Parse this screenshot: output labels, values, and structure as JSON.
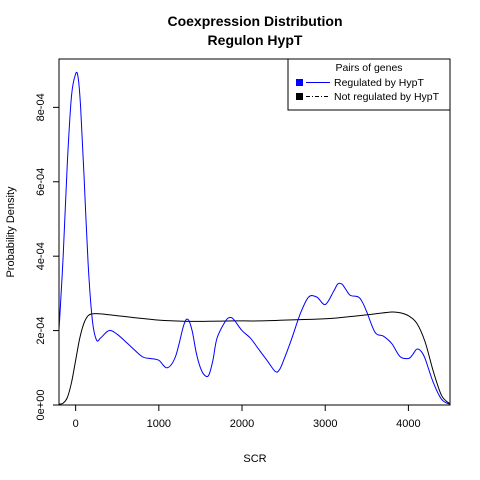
{
  "chart_data": {
    "type": "line",
    "title": "Coexpression Distribution",
    "subtitle": "Regulon HypT",
    "xlabel": "SCR",
    "ylabel": "Probability Density",
    "xlim": [
      -200,
      4500
    ],
    "ylim": [
      0,
      0.00093
    ],
    "x_ticks": [
      0,
      1000,
      2000,
      3000,
      4000
    ],
    "x_tick_labels": [
      "0",
      "1000",
      "2000",
      "3000",
      "4000"
    ],
    "y_ticks": [
      0,
      0.0002,
      0.0004,
      0.0006,
      0.0008
    ],
    "y_tick_labels": [
      "0e+00",
      "2e-04",
      "4e-04",
      "6e-04",
      "8e-04"
    ],
    "grid": false,
    "legend": {
      "title": "Pairs of genes",
      "placement": "top-right",
      "entries": [
        "Regulated by  HypT",
        "Not regulated by  HypT"
      ]
    },
    "colors": {
      "regulated": "#0000ff",
      "not_regulated": "#000000"
    },
    "series": [
      {
        "name": "Regulated by  HypT",
        "x": [
          -200,
          -150,
          -100,
          -50,
          0,
          30,
          60,
          100,
          150,
          200,
          250,
          300,
          400,
          500,
          650,
          800,
          900,
          1000,
          1100,
          1200,
          1300,
          1350,
          1400,
          1450,
          1500,
          1550,
          1600,
          1650,
          1700,
          1800,
          1850,
          1900,
          2000,
          2100,
          2200,
          2300,
          2400,
          2450,
          2500,
          2600,
          2700,
          2800,
          2900,
          3000,
          3100,
          3150,
          3200,
          3250,
          3300,
          3400,
          3450,
          3500,
          3600,
          3700,
          3800,
          3900,
          4000,
          4050,
          4100,
          4150,
          4200,
          4300,
          4400,
          4500
        ],
        "y": [
          0.0002,
          0.0004,
          0.00065,
          0.00083,
          0.00089,
          0.00088,
          0.0008,
          0.00062,
          0.00038,
          0.00023,
          0.000175,
          0.00018,
          0.0002,
          0.00019,
          0.00016,
          0.00013,
          0.000125,
          0.00012,
          0.0001,
          0.00013,
          0.000215,
          0.00023,
          0.0002,
          0.00014,
          0.0001,
          8e-05,
          8e-05,
          0.00012,
          0.00018,
          0.000225,
          0.000235,
          0.00023,
          0.0002,
          0.00018,
          0.00015,
          0.00012,
          9e-05,
          9.5e-05,
          0.00012,
          0.00018,
          0.000245,
          0.00029,
          0.00029,
          0.00027,
          0.000305,
          0.000325,
          0.000325,
          0.00031,
          0.000295,
          0.00029,
          0.000275,
          0.00025,
          0.000195,
          0.000185,
          0.000165,
          0.00013,
          0.000125,
          0.000135,
          0.00015,
          0.000145,
          0.000125,
          6e-05,
          1.5e-05,
          2e-06
        ]
      },
      {
        "name": "Not regulated by  HypT",
        "x": [
          -200,
          -150,
          -100,
          -50,
          0,
          50,
          100,
          150,
          200,
          300,
          500,
          700,
          1000,
          1300,
          1600,
          1900,
          2200,
          2500,
          2800,
          3100,
          3400,
          3600,
          3800,
          3900,
          4000,
          4100,
          4200,
          4300,
          4400,
          4500
        ],
        "y": [
          2e-06,
          5e-06,
          2e-05,
          6e-05,
          0.00012,
          0.00018,
          0.00022,
          0.00024,
          0.000245,
          0.000245,
          0.00024,
          0.000235,
          0.000228,
          0.000225,
          0.000225,
          0.000226,
          0.000226,
          0.000228,
          0.00023,
          0.000233,
          0.00024,
          0.000245,
          0.00025,
          0.000248,
          0.00024,
          0.00022,
          0.00017,
          9e-05,
          2.5e-05,
          3e-06
        ]
      }
    ]
  }
}
